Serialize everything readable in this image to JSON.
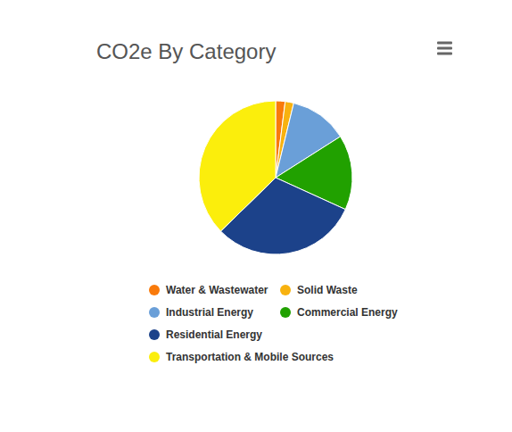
{
  "chart_data": {
    "type": "pie",
    "title": "CO2e By Category",
    "categories": [
      "Water & Wastewater",
      "Solid Waste",
      "Industrial Energy",
      "Commercial Energy",
      "Residential Energy",
      "Transportation & Mobile Sources"
    ],
    "values": [
      2.0,
      1.8,
      12.2,
      15.8,
      30.9,
      37.3
    ],
    "colors": [
      "#f97a0b",
      "#f8b20f",
      "#6a9fd8",
      "#21a100",
      "#1c428a",
      "#fbee0c"
    ],
    "legend": "bottom"
  }
}
